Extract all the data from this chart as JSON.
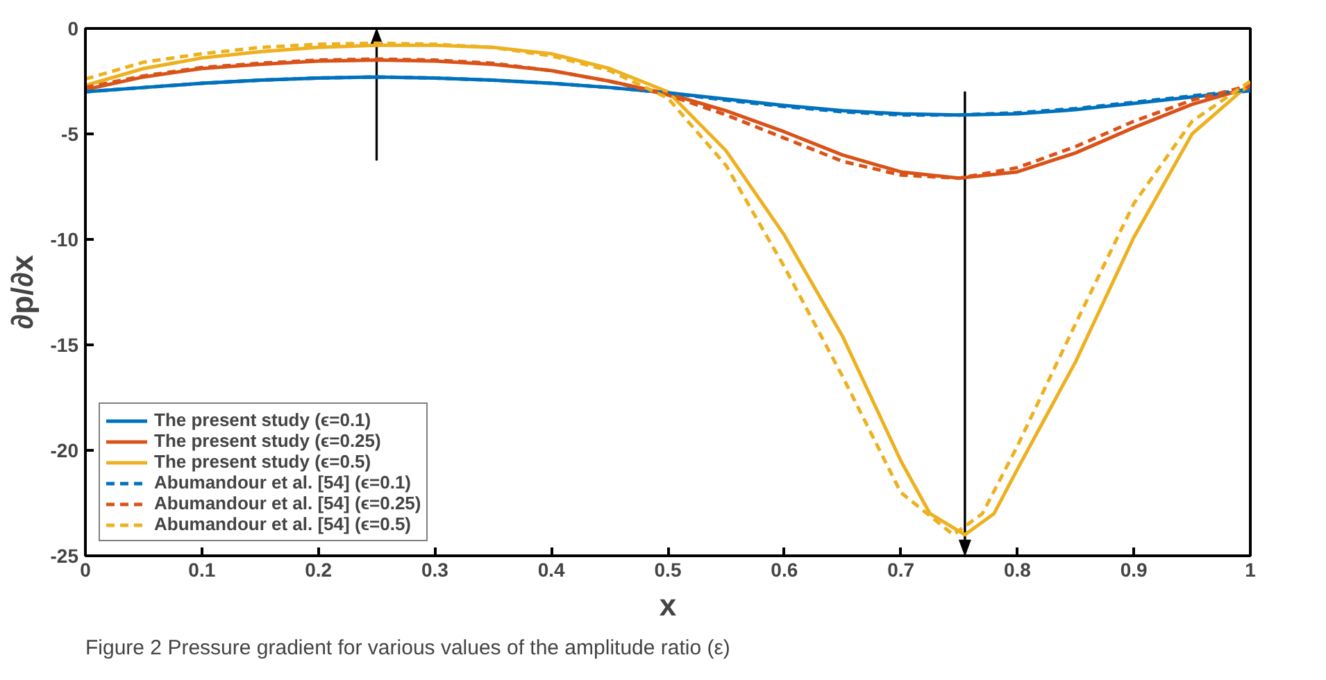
{
  "chart_data": {
    "type": "line",
    "xlabel": "x",
    "ylabel": "∂p/∂x",
    "x": [
      0,
      0.05,
      0.1,
      0.15,
      0.2,
      0.25,
      0.3,
      0.35,
      0.4,
      0.45,
      0.5,
      0.55,
      0.6,
      0.65,
      0.7,
      0.75,
      0.8,
      0.85,
      0.9,
      0.95,
      1
    ],
    "series": [
      {
        "name": "The present study (ϵ=0.1)",
        "color": "#0072bd",
        "line_style": "solid",
        "values": [
          -3.0,
          -2.8,
          -2.6,
          -2.45,
          -2.35,
          -2.3,
          -2.35,
          -2.45,
          -2.6,
          -2.8,
          -3.05,
          -3.35,
          -3.65,
          -3.9,
          -4.05,
          -4.1,
          -4.05,
          -3.85,
          -3.55,
          -3.25,
          -2.95
        ]
      },
      {
        "name": "The present study (ϵ=0.25)",
        "color": "#d95319",
        "line_style": "solid",
        "values": [
          -2.9,
          -2.3,
          -1.9,
          -1.7,
          -1.55,
          -1.5,
          -1.55,
          -1.7,
          -2.0,
          -2.5,
          -3.1,
          -3.9,
          -4.9,
          -6.0,
          -6.8,
          -7.1,
          -6.8,
          -5.9,
          -4.7,
          -3.6,
          -2.8
        ]
      },
      {
        "name": "The present study (ϵ=0.5)",
        "color": "#edb120",
        "line_style": "solid",
        "x": [
          0,
          0.05,
          0.1,
          0.15,
          0.2,
          0.25,
          0.3,
          0.35,
          0.4,
          0.45,
          0.5,
          0.55,
          0.6,
          0.65,
          0.7,
          0.725,
          0.755,
          0.78,
          0.8,
          0.85,
          0.9,
          0.95,
          1
        ],
        "values": [
          -2.7,
          -1.9,
          -1.4,
          -1.1,
          -0.9,
          -0.8,
          -0.8,
          -0.9,
          -1.2,
          -1.9,
          -3.0,
          -5.8,
          -9.8,
          -14.6,
          -20.5,
          -23.0,
          -24.0,
          -23.0,
          -20.9,
          -15.8,
          -9.9,
          -5.0,
          -2.6
        ]
      },
      {
        "name": "Abumandour et al. [54] (ϵ=0.1)",
        "color": "#0072bd",
        "line_style": "dashed",
        "values": [
          -3.0,
          -2.8,
          -2.6,
          -2.45,
          -2.35,
          -2.3,
          -2.35,
          -2.45,
          -2.6,
          -2.8,
          -3.05,
          -3.4,
          -3.7,
          -3.95,
          -4.1,
          -4.1,
          -4.0,
          -3.8,
          -3.5,
          -3.2,
          -2.9
        ]
      },
      {
        "name": "Abumandour et al. [54] (ϵ=0.25)",
        "color": "#d95319",
        "line_style": "dashed",
        "values": [
          -2.8,
          -2.25,
          -1.85,
          -1.65,
          -1.5,
          -1.45,
          -1.5,
          -1.65,
          -2.0,
          -2.5,
          -3.15,
          -4.1,
          -5.2,
          -6.3,
          -6.95,
          -7.1,
          -6.6,
          -5.6,
          -4.4,
          -3.4,
          -2.7
        ]
      },
      {
        "name": "Abumandour et al. [54] (ϵ=0.5)",
        "color": "#edb120",
        "line_style": "dashed",
        "x": [
          0,
          0.05,
          0.1,
          0.15,
          0.2,
          0.25,
          0.3,
          0.35,
          0.4,
          0.45,
          0.5,
          0.55,
          0.6,
          0.65,
          0.7,
          0.745,
          0.77,
          0.8,
          0.85,
          0.9,
          0.95,
          1
        ],
        "values": [
          -2.4,
          -1.6,
          -1.2,
          -0.9,
          -0.75,
          -0.7,
          -0.75,
          -0.9,
          -1.3,
          -2.0,
          -3.3,
          -6.5,
          -11.3,
          -16.5,
          -22.0,
          -24.0,
          -23.0,
          -19.8,
          -14.0,
          -8.3,
          -4.4,
          -2.5
        ]
      }
    ],
    "xlim": [
      0,
      1
    ],
    "ylim": [
      -25,
      0
    ],
    "xticks": [
      0,
      0.1,
      0.2,
      0.3,
      0.4,
      0.5,
      0.6,
      0.7,
      0.8,
      0.9,
      1
    ],
    "yticks": [
      -25,
      -20,
      -15,
      -10,
      -5,
      0
    ],
    "grid": false,
    "legend": "bottom left",
    "annotations": [
      "Figure 2  Pressure gradient for various values of the amplitude ratio (ε)"
    ]
  }
}
